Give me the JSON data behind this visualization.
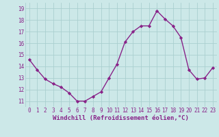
{
  "x": [
    0,
    1,
    2,
    3,
    4,
    5,
    6,
    7,
    8,
    9,
    10,
    11,
    12,
    13,
    14,
    15,
    16,
    17,
    18,
    19,
    20,
    21,
    22,
    23
  ],
  "y": [
    14.6,
    13.7,
    12.9,
    12.5,
    12.2,
    11.7,
    11.0,
    11.0,
    11.4,
    11.8,
    13.0,
    14.2,
    16.1,
    17.0,
    17.5,
    17.5,
    18.8,
    18.1,
    17.5,
    16.5,
    13.7,
    12.9,
    13.0,
    13.9
  ],
  "line_color": "#882288",
  "marker": "D",
  "markersize": 2.2,
  "linewidth": 1.0,
  "bg_color": "#cce8e8",
  "grid_color": "#aacfcf",
  "xlabel": "Windchill (Refroidissement éolien,°C)",
  "xlabel_fontsize": 6.5,
  "xlabel_color": "#882288",
  "tick_color": "#882288",
  "tick_fontsize": 5.5,
  "ytick_labels": [
    "11",
    "12",
    "13",
    "14",
    "15",
    "16",
    "17",
    "18",
    "19"
  ],
  "ylim": [
    10.5,
    19.5
  ],
  "xlim": [
    -0.5,
    23.5
  ]
}
